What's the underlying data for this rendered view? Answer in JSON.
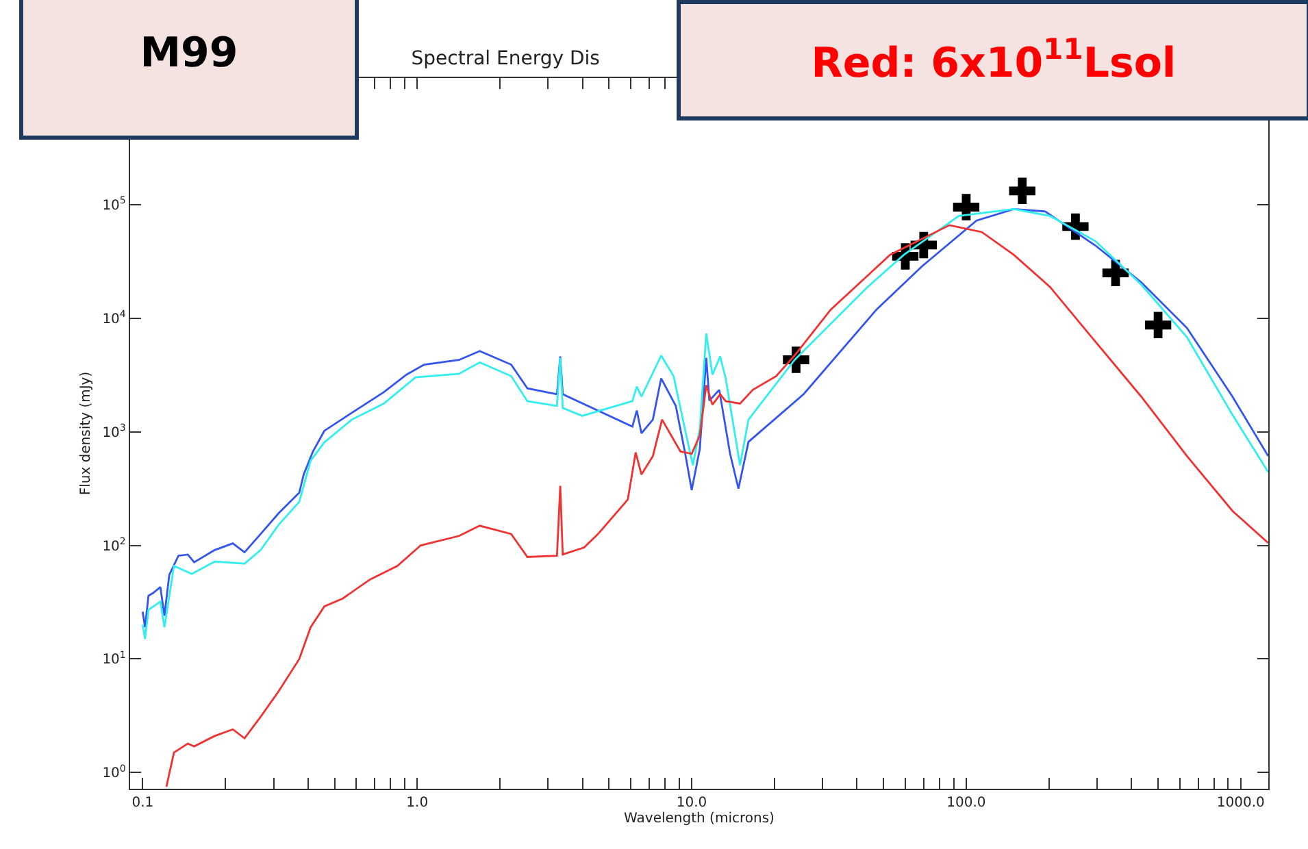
{
  "chart_data": {
    "type": "line",
    "title": "Spectral Energy Dis",
    "xlabel": "Wavelength (microns)",
    "ylabel": "Flux density (mJy)",
    "annotations": [
      "M99",
      "Red: 6x10$^{11}$Lsol"
    ],
    "log": "xy",
    "line_style": "solid",
    "xlim": [
      0.09,
      1260
    ],
    "ylim": [
      0.72,
      1300000
    ],
    "xticks": [
      {
        "value": 0.1,
        "label": "0.1"
      },
      {
        "value": 0.2,
        "label": null
      },
      {
        "value": 0.3,
        "label": null
      },
      {
        "value": 0.4,
        "label": null
      },
      {
        "value": 0.5,
        "label": null
      },
      {
        "value": 0.6,
        "label": null
      },
      {
        "value": 0.7,
        "label": null
      },
      {
        "value": 0.8,
        "label": null
      },
      {
        "value": 0.9,
        "label": null
      },
      {
        "value": 1,
        "label": "1.0"
      },
      {
        "value": 2,
        "label": null
      },
      {
        "value": 3,
        "label": null
      },
      {
        "value": 4,
        "label": null
      },
      {
        "value": 5,
        "label": null
      },
      {
        "value": 6,
        "label": null
      },
      {
        "value": 7,
        "label": null
      },
      {
        "value": 8,
        "label": null
      },
      {
        "value": 9,
        "label": null
      },
      {
        "value": 10,
        "label": "10.0"
      },
      {
        "value": 20,
        "label": null
      },
      {
        "value": 30,
        "label": null
      },
      {
        "value": 40,
        "label": null
      },
      {
        "value": 50,
        "label": null
      },
      {
        "value": 60,
        "label": null
      },
      {
        "value": 70,
        "label": null
      },
      {
        "value": 80,
        "label": null
      },
      {
        "value": 90,
        "label": null
      },
      {
        "value": 100,
        "label": "100.0"
      },
      {
        "value": 200,
        "label": null
      },
      {
        "value": 300,
        "label": null
      },
      {
        "value": 400,
        "label": null
      },
      {
        "value": 500,
        "label": null
      },
      {
        "value": 600,
        "label": null
      },
      {
        "value": 700,
        "label": null
      },
      {
        "value": 800,
        "label": null
      },
      {
        "value": 900,
        "label": null
      },
      {
        "value": 1000,
        "label": "1000.0"
      }
    ],
    "yticks": [
      {
        "value": 1,
        "label": "10$^{0}$"
      },
      {
        "value": 10,
        "label": "10$^{1}$"
      },
      {
        "value": 100,
        "label": "10$^{2}$"
      },
      {
        "value": 1000,
        "label": "10$^{3}$"
      },
      {
        "value": 10000,
        "label": "10$^{4}$"
      },
      {
        "value": 100000,
        "label": "10$^{5}$"
      }
    ],
    "series": [
      {
        "color": "#3355ee",
        "x": [
          0.1,
          0.102,
          0.105,
          0.109,
          0.116,
          0.12,
          0.125,
          0.135,
          0.146,
          0.154,
          0.183,
          0.213,
          0.235,
          0.269,
          0.313,
          0.372,
          0.386,
          0.417,
          0.459,
          0.578,
          0.755,
          0.914,
          1.06,
          1.42,
          1.69,
          2.2,
          2.52,
          3.23,
          3.32,
          3.39,
          6.08,
          6.31,
          6.56,
          7.22,
          7.74,
          8.75,
          9.44,
          10.0,
          10.7,
          11.3,
          11.6,
          12.6,
          13.8,
          14.8,
          16.1,
          25.6,
          47.1,
          69.0,
          109,
          149,
          194,
          296,
          434,
          637,
          933,
          1259
        ],
        "values": [
          26,
          19,
          36,
          38,
          43,
          24,
          55,
          81,
          83,
          71,
          91,
          104,
          87,
          126,
          192,
          291,
          421,
          670,
          1020,
          1470,
          2230,
          3180,
          3900,
          4290,
          5140,
          3900,
          2410,
          2140,
          4600,
          2140,
          1110,
          1540,
          970,
          1280,
          2950,
          1690,
          670,
          307,
          703,
          4480,
          1880,
          2340,
          640,
          316,
          815,
          2150,
          11900,
          28600,
          72300,
          91200,
          87100,
          43500,
          20700,
          8190,
          2040,
          611
        ]
      },
      {
        "color": "#33eeee",
        "x": [
          0.1,
          0.102,
          0.105,
          0.116,
          0.12,
          0.13,
          0.151,
          0.183,
          0.235,
          0.269,
          0.313,
          0.372,
          0.409,
          0.459,
          0.578,
          0.755,
          0.986,
          1.42,
          1.69,
          2.2,
          2.52,
          3.23,
          3.32,
          3.39,
          3.99,
          6.08,
          6.31,
          6.56,
          7.74,
          8.59,
          9.44,
          10.1,
          10.7,
          11.3,
          11.9,
          12.7,
          13.3,
          15.0,
          16.1,
          23.7,
          43.7,
          59.3,
          94.0,
          149,
          202,
          296,
          434,
          637,
          933,
          1259
        ],
        "values": [
          20,
          15,
          27,
          32,
          19,
          66,
          56,
          72,
          69,
          91,
          152,
          242,
          556,
          807,
          1280,
          1770,
          3010,
          3240,
          4080,
          3090,
          1860,
          1690,
          4480,
          1620,
          1380,
          1860,
          2500,
          2040,
          4690,
          3090,
          1070,
          507,
          1070,
          7330,
          3180,
          4600,
          2950,
          507,
          1280,
          4290,
          18800,
          36100,
          79400,
          91200,
          79400,
          47600,
          19800,
          6790,
          1410,
          442
        ]
      },
      {
        "color": "#ee3333",
        "x": [
          0.122,
          0.13,
          0.146,
          0.154,
          0.183,
          0.213,
          0.235,
          0.269,
          0.313,
          0.372,
          0.409,
          0.459,
          0.535,
          0.673,
          0.847,
          1.03,
          1.42,
          1.69,
          2.2,
          2.52,
          3.23,
          3.32,
          3.39,
          4.06,
          4.56,
          5.85,
          6.25,
          6.56,
          7.22,
          7.8,
          9.1,
          10.0,
          10.7,
          11.3,
          11.9,
          12.7,
          13.3,
          15.0,
          16.7,
          20.3,
          23.7,
          32.1,
          52.8,
          86.9,
          114,
          149,
          202,
          296,
          434,
          637,
          933,
          1259
        ],
        "values": [
          0.75,
          1.5,
          1.8,
          1.7,
          2.1,
          2.4,
          2.0,
          3.1,
          5.2,
          10,
          19,
          29,
          34,
          50,
          66,
          100,
          121,
          149,
          126,
          79,
          81,
          334,
          83,
          96,
          126,
          253,
          658,
          421,
          611,
          1280,
          670,
          640,
          927,
          2570,
          1730,
          2140,
          1860,
          1770,
          2340,
          3090,
          4690,
          11900,
          36100,
          65900,
          57300,
          36100,
          18800,
          6190,
          2040,
          611,
          201,
          105
        ]
      },
      {
        "type": "scatter",
        "color": "#000000",
        "marker": "cross",
        "x": [
          24,
          60,
          70,
          100,
          160,
          250,
          350,
          500
        ],
        "values": [
          4300,
          35000,
          44000,
          95000,
          132000,
          64000,
          25000,
          8700
        ]
      }
    ]
  }
}
